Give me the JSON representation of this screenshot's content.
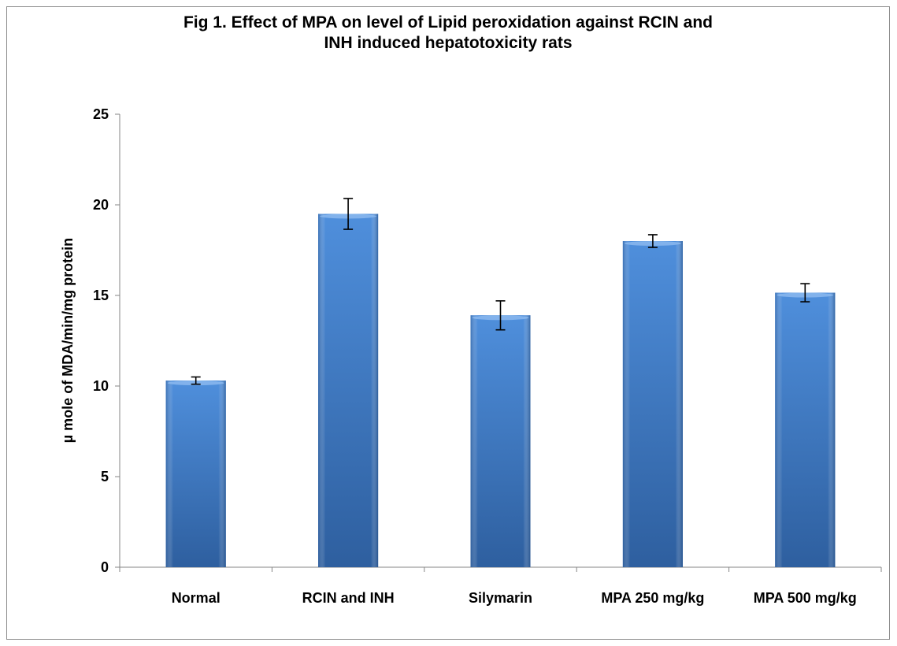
{
  "chart_data": {
    "type": "bar",
    "title_line1": "Fig 1. Effect of MPA on level of Lipid peroxidation against RCIN and",
    "title_line2": "INH induced hepatotoxicity rats",
    "ylabel": "µ mole of MDA/min/mg protein",
    "xlabel": "",
    "ylim": [
      0,
      25
    ],
    "yticks": [
      0,
      5,
      10,
      15,
      20,
      25
    ],
    "categories": [
      "Normal",
      "RCIN and INH",
      "Silymarin",
      "MPA 250 mg/kg",
      "MPA 500 mg/kg"
    ],
    "values": [
      10.3,
      19.5,
      13.9,
      18.0,
      15.15
    ],
    "errors": [
      0.2,
      0.85,
      0.8,
      0.35,
      0.5
    ],
    "grid": false,
    "legend": "none",
    "bar_color": "#3c7bcc"
  }
}
